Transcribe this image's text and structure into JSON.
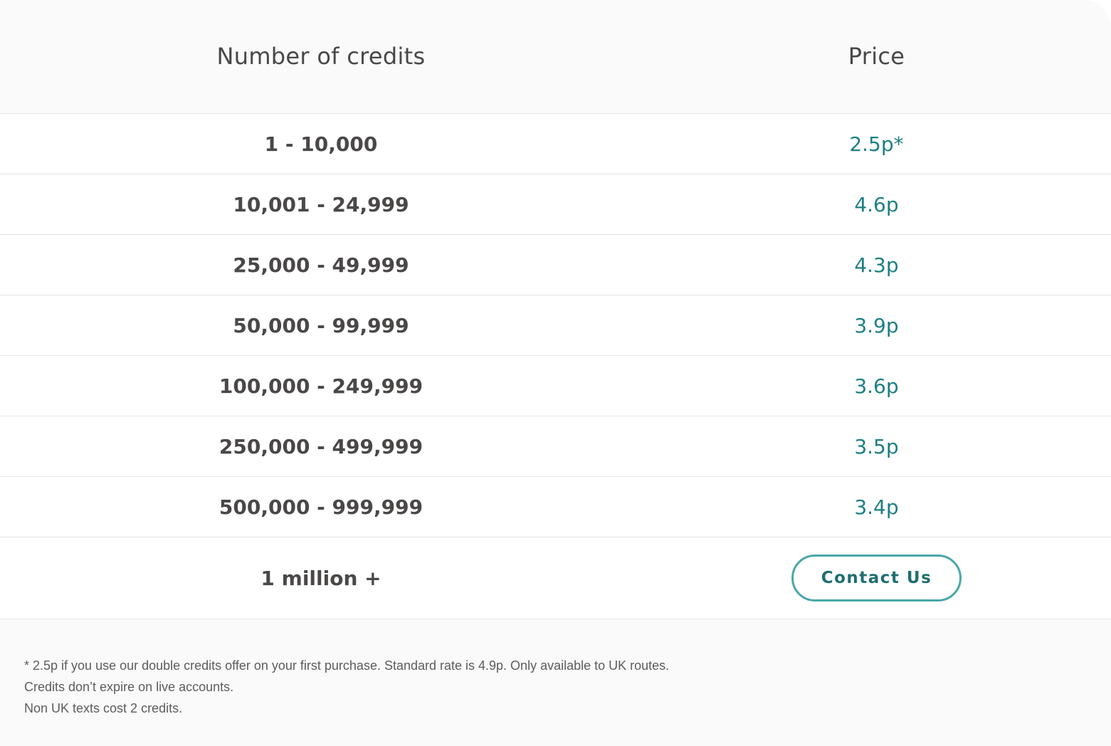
{
  "table": {
    "headers": {
      "credits": "Number of credits",
      "price": "Price"
    },
    "rows": [
      {
        "credits": "1 - 10,000",
        "price": "2.5p*"
      },
      {
        "credits": "10,001 - 24,999",
        "price": "4.6p"
      },
      {
        "credits": "25,000 - 49,999",
        "price": "4.3p"
      },
      {
        "credits": "50,000 - 99,999",
        "price": "3.9p"
      },
      {
        "credits": "100,000 - 249,999",
        "price": "3.6p"
      },
      {
        "credits": "250,000 - 499,999",
        "price": "3.5p"
      },
      {
        "credits": "500,000 - 999,999",
        "price": "3.4p"
      }
    ],
    "last_row": {
      "credits": "1 million +",
      "button_label": "Contact Us"
    }
  },
  "footnotes": [
    "* 2.5p if you use our double credits offer on your first purchase. Standard rate is 4.9p. Only available to UK routes.",
    "Credits don’t expire on live accounts.",
    "Non UK texts cost 2 credits."
  ],
  "colors": {
    "text_dark": "#4a4747",
    "price_accent": "#1e7f83",
    "button_border": "#4aa7a9",
    "card_background": "#fafafa"
  }
}
